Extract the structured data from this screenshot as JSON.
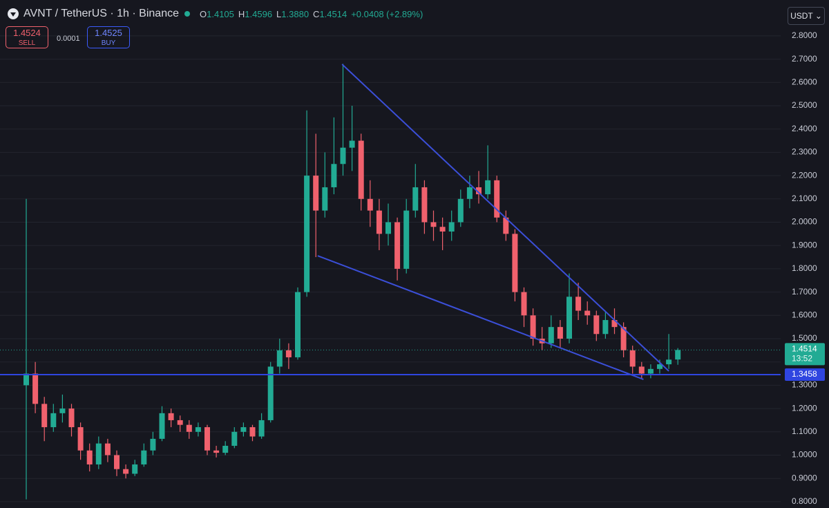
{
  "header": {
    "title": "AVNT / TetherUS · 1h · Binance",
    "ohlc": [
      {
        "key": "O",
        "value": "1.4105"
      },
      {
        "key": "H",
        "value": "1.4596"
      },
      {
        "key": "L",
        "value": "1.3880"
      },
      {
        "key": "C",
        "value": "1.4514"
      }
    ],
    "change": "+0.0408 (+2.89%)",
    "sell": {
      "price": "1.4524",
      "label": "SELL"
    },
    "spread": "0.0001",
    "buy": {
      "price": "1.4525",
      "label": "BUY"
    },
    "currency": "USDT"
  },
  "chart_data": {
    "type": "candlestick",
    "up_color": "#22ab94",
    "down_color": "#f0616d",
    "grid": true,
    "ylim": [
      0.773,
      2.954
    ],
    "yticks": [
      {
        "value": 0.8,
        "label": "0.8000"
      },
      {
        "value": 0.9,
        "label": "0.9000"
      },
      {
        "value": 1.0,
        "label": "1.0000"
      },
      {
        "value": 1.1,
        "label": "1.1000"
      },
      {
        "value": 1.2,
        "label": "1.2000"
      },
      {
        "value": 1.3,
        "label": "1.3000"
      },
      {
        "value": 1.4,
        "label": "1.4000"
      },
      {
        "value": 1.5,
        "label": "1.5000"
      },
      {
        "value": 1.6,
        "label": "1.6000"
      },
      {
        "value": 1.7,
        "label": "1.7000"
      },
      {
        "value": 1.8,
        "label": "1.8000"
      },
      {
        "value": 1.9,
        "label": "1.9000"
      },
      {
        "value": 2.0,
        "label": "2.0000"
      },
      {
        "value": 2.1,
        "label": "2.1000"
      },
      {
        "value": 2.2,
        "label": "2.2000"
      },
      {
        "value": 2.3,
        "label": "2.3000"
      },
      {
        "value": 2.4,
        "label": "2.4000"
      },
      {
        "value": 2.5,
        "label": "2.5000"
      },
      {
        "value": 2.6,
        "label": "2.6000"
      },
      {
        "value": 2.7,
        "label": "2.7000"
      },
      {
        "value": 2.8,
        "label": "2.8000"
      }
    ],
    "open": [
      1.3,
      1.35,
      1.22,
      1.12,
      1.18,
      1.2,
      1.12,
      1.02,
      0.96,
      1.05,
      1.0,
      0.94,
      0.92,
      0.96,
      1.02,
      1.07,
      1.18,
      1.15,
      1.13,
      1.1,
      1.12,
      1.02,
      1.01,
      1.04,
      1.1,
      1.12,
      1.08,
      1.15,
      1.38,
      1.45,
      1.42,
      1.7,
      2.2,
      2.05,
      2.15,
      2.25,
      2.32,
      2.35,
      2.1,
      2.05,
      1.95,
      2.0,
      1.8,
      2.05,
      2.15,
      2.0,
      1.98,
      1.96,
      2.0,
      2.1,
      2.15,
      2.12,
      2.18,
      2.02,
      1.95,
      1.7,
      1.6,
      1.5,
      1.48,
      1.55,
      1.5,
      1.68,
      1.62,
      1.6,
      1.52,
      1.58,
      1.55,
      1.45,
      1.38,
      1.35,
      1.37,
      1.39,
      1.4105
    ],
    "high": [
      2.1,
      1.4,
      1.25,
      1.22,
      1.26,
      1.22,
      1.14,
      1.05,
      1.08,
      1.07,
      1.02,
      0.96,
      0.98,
      1.05,
      1.1,
      1.21,
      1.2,
      1.17,
      1.15,
      1.14,
      1.13,
      1.04,
      1.06,
      1.12,
      1.14,
      1.13,
      1.18,
      1.4,
      1.5,
      1.48,
      1.72,
      2.48,
      2.38,
      2.3,
      2.45,
      2.68,
      2.5,
      2.38,
      2.18,
      2.1,
      2.08,
      2.02,
      2.1,
      2.25,
      2.18,
      2.05,
      2.02,
      2.05,
      2.14,
      2.2,
      2.22,
      2.33,
      2.2,
      2.05,
      1.97,
      1.72,
      1.63,
      1.55,
      1.6,
      1.58,
      1.78,
      1.74,
      1.66,
      1.62,
      1.62,
      1.63,
      1.57,
      1.47,
      1.4,
      1.39,
      1.41,
      1.52,
      1.4596
    ],
    "low": [
      0.81,
      1.18,
      1.06,
      1.1,
      1.14,
      1.08,
      0.98,
      0.93,
      0.94,
      0.97,
      0.91,
      0.9,
      0.91,
      0.95,
      1.0,
      1.06,
      1.12,
      1.1,
      1.07,
      1.08,
      1.0,
      0.99,
      1.0,
      1.03,
      1.08,
      1.06,
      1.07,
      1.14,
      1.35,
      1.37,
      1.41,
      1.68,
      1.85,
      2.02,
      2.12,
      2.2,
      2.22,
      2.05,
      1.98,
      1.88,
      1.9,
      1.75,
      1.78,
      2.02,
      1.95,
      1.92,
      1.88,
      1.92,
      1.98,
      2.06,
      2.08,
      2.1,
      2.0,
      1.92,
      1.66,
      1.55,
      1.47,
      1.45,
      1.46,
      1.46,
      1.48,
      1.58,
      1.56,
      1.49,
      1.5,
      1.52,
      1.42,
      1.35,
      1.33,
      1.33,
      1.35,
      1.37,
      1.388
    ],
    "close": [
      1.35,
      1.22,
      1.12,
      1.18,
      1.2,
      1.12,
      1.02,
      0.96,
      1.05,
      1.0,
      0.94,
      0.92,
      0.96,
      1.02,
      1.07,
      1.18,
      1.15,
      1.13,
      1.1,
      1.12,
      1.02,
      1.01,
      1.04,
      1.1,
      1.12,
      1.08,
      1.15,
      1.38,
      1.45,
      1.42,
      1.7,
      2.2,
      2.05,
      2.15,
      2.25,
      2.32,
      2.35,
      2.1,
      2.05,
      1.95,
      2.0,
      1.8,
      2.05,
      2.15,
      2.0,
      1.98,
      1.96,
      2.0,
      2.1,
      2.15,
      2.12,
      2.18,
      2.02,
      1.95,
      1.7,
      1.6,
      1.5,
      1.48,
      1.55,
      1.5,
      1.68,
      1.62,
      1.6,
      1.52,
      1.58,
      1.55,
      1.45,
      1.38,
      1.35,
      1.37,
      1.39,
      1.41,
      1.4514
    ],
    "countdown": "13:52",
    "trendlines": [
      {
        "start": [
          34.9,
          2.678
        ],
        "end": [
          71.0,
          1.361
        ],
        "color": "#3b4fd8"
      },
      {
        "start": [
          32.2,
          1.856
        ],
        "end": [
          68.2,
          1.325
        ],
        "color": "#3b4fd8"
      }
    ],
    "hline": {
      "value": 1.3458,
      "color": "#2f45e0"
    }
  }
}
